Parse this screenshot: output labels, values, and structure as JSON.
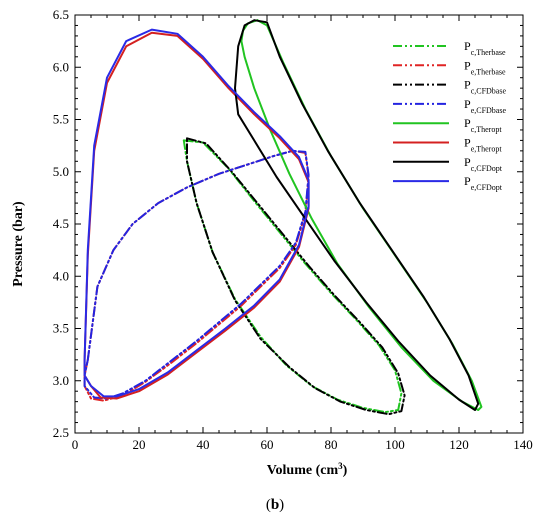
{
  "chart_data": {
    "type": "line",
    "xlabel": "Volume (cm",
    "xlabel_sup": "3",
    "xlabel_close": ")",
    "ylabel": "Pressure (bar)",
    "xlim": [
      0,
      140
    ],
    "ylim": [
      2.5,
      6.5
    ],
    "xticks": [
      "0",
      "20",
      "40",
      "60",
      "80",
      "100",
      "120",
      "140"
    ],
    "yticks": [
      "2.5",
      "3.0",
      "3.5",
      "4.0",
      "4.5",
      "5.0",
      "5.5",
      "6.0",
      "6.5"
    ],
    "grid": false,
    "legend_position": "top-right",
    "caption_open": "(",
    "caption_letter": "b",
    "caption_close": ")",
    "series": [
      {
        "name": "P",
        "sub": "c,Therbase",
        "color": "#21c421",
        "dash": "dashdotdot",
        "x": [
          34,
          40,
          48,
          56,
          64,
          72,
          80,
          88,
          95,
          100,
          102,
          101,
          97,
          90,
          82,
          74,
          66,
          58,
          50,
          43,
          38,
          35,
          34
        ],
        "y": [
          5.3,
          5.28,
          5.03,
          4.72,
          4.42,
          4.12,
          3.84,
          3.58,
          3.34,
          3.1,
          2.88,
          2.72,
          2.7,
          2.74,
          2.82,
          2.95,
          3.15,
          3.42,
          3.78,
          4.23,
          4.7,
          5.1,
          5.3
        ]
      },
      {
        "name": "P",
        "sub": "e,Therbase",
        "color": "#e02424",
        "dash": "dashdotdot",
        "x": [
          4,
          7,
          12,
          18,
          26,
          35,
          45,
          55,
          62,
          68,
          72,
          73,
          72,
          69,
          64,
          58,
          52,
          45,
          38,
          30,
          22,
          15,
          9,
          5,
          3,
          3,
          4
        ],
        "y": [
          3.2,
          3.9,
          4.25,
          4.5,
          4.7,
          4.85,
          4.98,
          5.08,
          5.15,
          5.2,
          5.18,
          4.95,
          4.6,
          4.3,
          4.08,
          3.9,
          3.72,
          3.54,
          3.36,
          3.17,
          2.99,
          2.86,
          2.81,
          2.83,
          2.95,
          3.05,
          3.2
        ]
      },
      {
        "name": "P",
        "sub": "c,CFDbase",
        "color": "#000000",
        "dash": "dashdotdot",
        "x": [
          35,
          41,
          49,
          57,
          65,
          73,
          81,
          89,
          96,
          101,
          103,
          102,
          98,
          91,
          83,
          75,
          67,
          58,
          50,
          43,
          38,
          35,
          35
        ],
        "y": [
          5.32,
          5.27,
          5.0,
          4.7,
          4.4,
          4.1,
          3.82,
          3.56,
          3.32,
          3.07,
          2.86,
          2.71,
          2.68,
          2.72,
          2.8,
          2.93,
          3.13,
          3.4,
          3.77,
          4.23,
          4.7,
          5.1,
          5.32
        ]
      },
      {
        "name": "P",
        "sub": "e,CFDbase",
        "color": "#2424e0",
        "dash": "dashdotdot",
        "x": [
          4,
          7,
          12,
          18,
          26,
          35,
          45,
          55,
          62,
          68,
          72,
          73,
          72,
          69,
          64,
          58,
          52,
          45,
          38,
          30,
          22,
          15,
          10,
          6,
          3,
          3,
          4
        ],
        "y": [
          3.2,
          3.9,
          4.25,
          4.5,
          4.7,
          4.85,
          4.98,
          5.08,
          5.15,
          5.2,
          5.19,
          4.97,
          4.62,
          4.32,
          4.1,
          3.92,
          3.74,
          3.56,
          3.38,
          3.19,
          3.0,
          2.88,
          2.83,
          2.84,
          2.95,
          3.05,
          3.2
        ]
      },
      {
        "name": "P",
        "sub": "c,Theropt",
        "color": "#21c421",
        "dash": "solid",
        "x": [
          57,
          60,
          65,
          72,
          80,
          90,
          100,
          110,
          118,
          124,
          127,
          126,
          121,
          112,
          102,
          92,
          82,
          74,
          67,
          61,
          56,
          53,
          52,
          52.5,
          54,
          57
        ],
        "y": [
          6.45,
          6.4,
          6.05,
          5.6,
          5.15,
          4.65,
          4.2,
          3.75,
          3.35,
          3.0,
          2.75,
          2.72,
          2.8,
          3.0,
          3.32,
          3.7,
          4.12,
          4.55,
          4.98,
          5.4,
          5.8,
          6.1,
          6.25,
          6.35,
          6.42,
          6.45
        ]
      },
      {
        "name": "P",
        "sub": "e,Theropt",
        "color": "#d42020",
        "dash": "solid",
        "x": [
          3,
          4,
          6,
          10,
          16,
          24,
          32,
          40,
          48,
          56,
          64,
          70,
          73,
          73,
          70,
          64,
          56,
          47,
          38,
          29,
          20,
          13,
          8,
          5,
          3,
          3
        ],
        "y": [
          3.2,
          4.2,
          5.2,
          5.85,
          6.2,
          6.33,
          6.3,
          6.08,
          5.8,
          5.55,
          5.32,
          5.12,
          4.9,
          4.65,
          4.28,
          3.95,
          3.7,
          3.48,
          3.27,
          3.06,
          2.9,
          2.83,
          2.84,
          2.95,
          3.05,
          3.2
        ]
      },
      {
        "name": "P",
        "sub": "c,CFDopt",
        "color": "#000000",
        "dash": "solid",
        "x": [
          56,
          60,
          64,
          71,
          79,
          89,
          99,
          109,
          117,
          123,
          126,
          125,
          120,
          111,
          101,
          91,
          81,
          72,
          63,
          56,
          51,
          50,
          51,
          53,
          56
        ],
        "y": [
          6.45,
          6.43,
          6.1,
          5.65,
          5.2,
          4.7,
          4.25,
          3.8,
          3.4,
          3.05,
          2.78,
          2.72,
          2.82,
          3.05,
          3.38,
          3.75,
          4.15,
          4.55,
          4.95,
          5.3,
          5.55,
          5.8,
          6.2,
          6.4,
          6.45
        ]
      },
      {
        "name": "P",
        "sub": "e,CFDopt",
        "color": "#2a2ae6",
        "dash": "solid",
        "x": [
          3,
          4,
          6,
          10,
          16,
          24,
          32,
          40,
          48,
          56,
          64,
          70,
          73,
          73,
          70,
          64,
          56,
          47,
          38,
          29,
          20,
          13,
          9,
          5,
          3,
          3
        ],
        "y": [
          3.2,
          4.25,
          5.25,
          5.9,
          6.25,
          6.36,
          6.32,
          6.1,
          5.82,
          5.57,
          5.34,
          5.14,
          4.92,
          4.67,
          4.3,
          3.97,
          3.72,
          3.5,
          3.29,
          3.08,
          2.92,
          2.85,
          2.85,
          2.95,
          3.05,
          3.2
        ]
      }
    ]
  }
}
